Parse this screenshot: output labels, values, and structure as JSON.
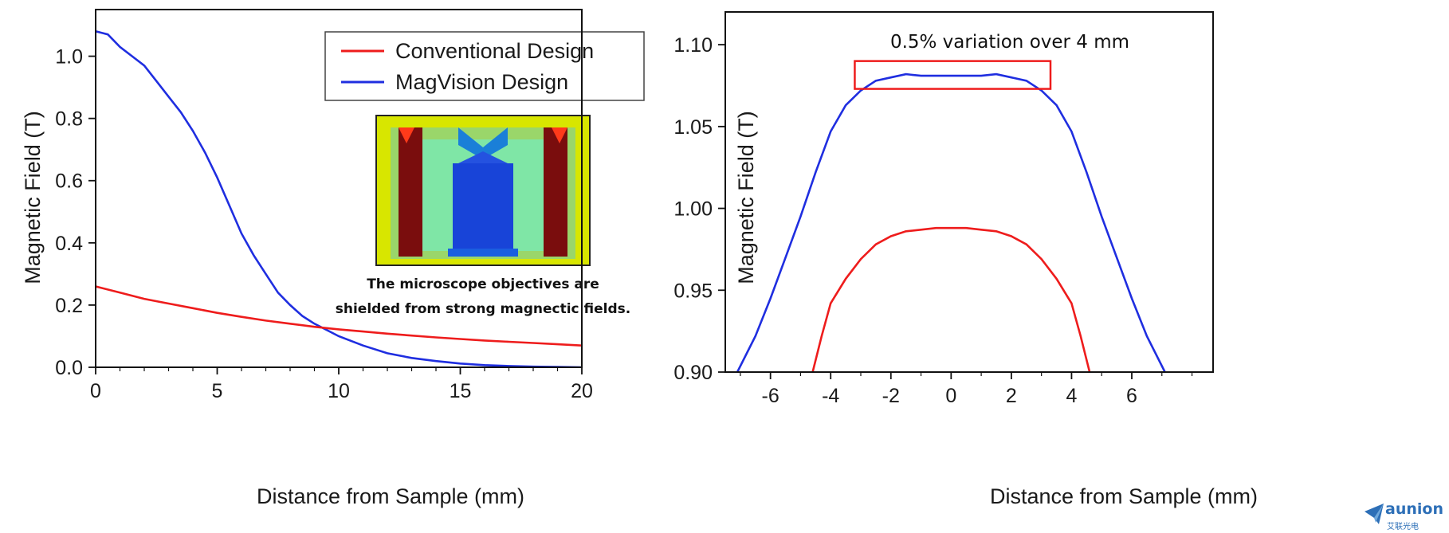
{
  "charts": [
    {
      "type": "line",
      "xlabel": "Distance from Sample (mm)",
      "ylabel": "Magnetic Field (T)",
      "xlim": [
        0,
        20
      ],
      "ylim": [
        0,
        1.15
      ],
      "xticks": [
        "0",
        "5",
        "10",
        "15",
        "20"
      ],
      "yticks": [
        "0.0",
        "0.2",
        "0.4",
        "0.6",
        "0.8",
        "1.0"
      ],
      "legend": [
        "Conventional Design",
        "MagVision Design"
      ],
      "legend_position": "top-right",
      "inset_caption": [
        "The microscope objectives are",
        "shielded from strong magnectic fields."
      ],
      "series": [
        {
          "name": "Conventional Design",
          "color": "#ee1c1c",
          "x": [
            0,
            1,
            2,
            3,
            4,
            5,
            6,
            7,
            8,
            9,
            10,
            11,
            12,
            13,
            14,
            15,
            16,
            17,
            18,
            19,
            20
          ],
          "y": [
            0.26,
            0.24,
            0.22,
            0.205,
            0.19,
            0.175,
            0.162,
            0.15,
            0.14,
            0.13,
            0.122,
            0.115,
            0.108,
            0.102,
            0.096,
            0.091,
            0.086,
            0.082,
            0.078,
            0.074,
            0.07
          ]
        },
        {
          "name": "MagVision Design",
          "color": "#1f2ee0",
          "x": [
            0,
            0.5,
            1,
            1.5,
            2,
            2.5,
            3,
            3.5,
            4,
            4.5,
            5,
            5.5,
            6,
            6.5,
            7,
            7.5,
            8,
            8.5,
            9,
            9.5,
            10,
            11,
            12,
            13,
            14,
            15,
            16,
            17,
            18,
            19,
            20
          ],
          "y": [
            1.08,
            1.07,
            1.03,
            1.0,
            0.97,
            0.92,
            0.87,
            0.82,
            0.76,
            0.69,
            0.61,
            0.52,
            0.43,
            0.36,
            0.3,
            0.24,
            0.2,
            0.165,
            0.14,
            0.12,
            0.1,
            0.07,
            0.045,
            0.03,
            0.02,
            0.012,
            0.007,
            0.004,
            0.002,
            0.001,
            0.0
          ]
        }
      ]
    },
    {
      "type": "line",
      "xlabel": "Distance from Sample (mm)",
      "ylabel": "Magnetic Field (T)",
      "xlim": [
        -7.5,
        8.7
      ],
      "ylim": [
        0.9,
        1.12
      ],
      "xticks": [
        "-6",
        "-4",
        "-2",
        "0",
        "2",
        "4",
        "6"
      ],
      "yticks": [
        "0.90",
        "0.95",
        "1.00",
        "1.05",
        "1.10"
      ],
      "annotation": "0.5% variation over 4 mm",
      "highlight_box": {
        "x": [
          -3.2,
          3.3
        ],
        "y": [
          1.073,
          1.09
        ],
        "color": "#ee1c1c"
      },
      "series": [
        {
          "color": "#1f2ee0",
          "x": [
            -7.1,
            -6.5,
            -6.0,
            -5.5,
            -5.0,
            -4.5,
            -4.0,
            -3.5,
            -3.0,
            -2.5,
            -2.0,
            -1.5,
            -1.0,
            0,
            1.0,
            1.5,
            2.0,
            2.5,
            3.0,
            3.5,
            4.0,
            4.5,
            5.0,
            5.5,
            6.0,
            6.5,
            7.1
          ],
          "y": [
            0.9,
            0.922,
            0.945,
            0.97,
            0.995,
            1.022,
            1.047,
            1.063,
            1.072,
            1.078,
            1.08,
            1.082,
            1.081,
            1.081,
            1.081,
            1.082,
            1.08,
            1.078,
            1.072,
            1.063,
            1.047,
            1.022,
            0.995,
            0.97,
            0.945,
            0.922,
            0.9
          ]
        },
        {
          "color": "#ee1c1c",
          "x": [
            -4.6,
            -4.3,
            -4.0,
            -3.5,
            -3.0,
            -2.5,
            -2.0,
            -1.5,
            -1.0,
            -0.5,
            0,
            0.5,
            1.0,
            1.5,
            2.0,
            2.5,
            3.0,
            3.5,
            4.0,
            4.3,
            4.6
          ],
          "y": [
            0.9,
            0.922,
            0.942,
            0.957,
            0.969,
            0.978,
            0.983,
            0.986,
            0.987,
            0.988,
            0.988,
            0.988,
            0.987,
            0.986,
            0.983,
            0.978,
            0.969,
            0.957,
            0.942,
            0.922,
            0.9
          ]
        }
      ]
    }
  ],
  "watermark": {
    "name": "aunion",
    "sub": "艾联光电",
    "icon": "paper-plane-logo-icon",
    "color": "#2d6fb7"
  }
}
